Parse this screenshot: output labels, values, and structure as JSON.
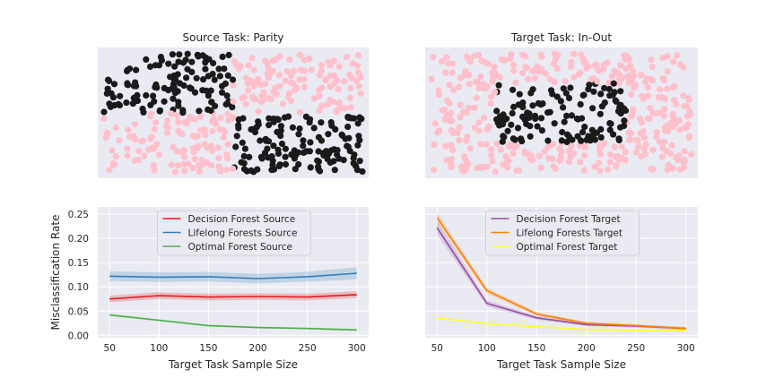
{
  "colors": {
    "axes_bg": "#eaeaf2",
    "grid": "#ffffff",
    "class_a": "#ffc0cb",
    "class_b": "#1a1a1a",
    "decision_forest_source": "#e41a1c",
    "lifelong_forests_source": "#377eb8",
    "optimal_forest_source": "#4daf4a",
    "decision_forest_target": "#984ea3",
    "lifelong_forests_target": "#ff7f00",
    "optimal_forest_target": "#ffff33"
  },
  "chart_data": [
    {
      "type": "scatter",
      "title": "Source Task: Parity",
      "task": "parity",
      "xlim": [
        -1,
        1
      ],
      "ylim": [
        -1,
        1
      ],
      "grid": false,
      "n_points": 500,
      "classes": [
        {
          "label": "0",
          "color": "#ffc0cb"
        },
        {
          "label": "1",
          "color": "#1a1a1a"
        }
      ]
    },
    {
      "type": "scatter",
      "title": "Target Task: In-Out",
      "task": "in-out",
      "xlim": [
        -1,
        1
      ],
      "ylim": [
        -1,
        1
      ],
      "grid": false,
      "n_points": 500,
      "classes": [
        {
          "label": "0",
          "color": "#ffc0cb"
        },
        {
          "label": "1",
          "color": "#1a1a1a"
        }
      ]
    },
    {
      "type": "line",
      "xlabel": "Target Task Sample Size",
      "ylabel": "Misclassification Rate",
      "x": [
        50,
        100,
        150,
        200,
        250,
        300
      ],
      "xticks": [
        50,
        100,
        150,
        200,
        250,
        300
      ],
      "yticks": [
        "0.00",
        "0.05",
        "0.10",
        "0.15",
        "0.20",
        "0.25"
      ],
      "xlim": [
        38,
        312
      ],
      "ylim": [
        -0.005,
        0.265
      ],
      "legend_location": "top-center",
      "series": [
        {
          "name": "Decision Forest Source",
          "color": "#e41a1c",
          "values": [
            0.075,
            0.082,
            0.079,
            0.08,
            0.079,
            0.084
          ],
          "band": [
            0.007,
            0.007,
            0.007,
            0.007,
            0.007,
            0.007
          ]
        },
        {
          "name": "Lifelong Forests Source",
          "color": "#377eb8",
          "values": [
            0.122,
            0.12,
            0.121,
            0.117,
            0.121,
            0.128
          ],
          "band": [
            0.01,
            0.01,
            0.01,
            0.01,
            0.01,
            0.013
          ]
        },
        {
          "name": "Optimal Forest Source",
          "color": "#4daf4a",
          "values": [
            0.042,
            0.031,
            0.02,
            0.016,
            0.014,
            0.011
          ],
          "band": [
            0.002,
            0.002,
            0.002,
            0.002,
            0.002,
            0.002
          ]
        }
      ]
    },
    {
      "type": "line",
      "xlabel": "Target Task Sample Size",
      "ylabel": "",
      "x": [
        50,
        100,
        150,
        200,
        250,
        300
      ],
      "xticks": [
        50,
        100,
        150,
        200,
        250,
        300
      ],
      "yticks": [],
      "xlim": [
        38,
        312
      ],
      "ylim": [
        -0.005,
        0.265
      ],
      "legend_location": "top-center",
      "series": [
        {
          "name": "Decision Forest Target",
          "color": "#984ea3",
          "values": [
            0.222,
            0.066,
            0.036,
            0.022,
            0.019,
            0.014
          ],
          "band": [
            0.014,
            0.006,
            0.004,
            0.003,
            0.003,
            0.003
          ]
        },
        {
          "name": "Lifelong Forests Target",
          "color": "#ff7f00",
          "values": [
            0.243,
            0.092,
            0.044,
            0.025,
            0.02,
            0.014
          ],
          "band": [
            0.01,
            0.006,
            0.004,
            0.003,
            0.003,
            0.003
          ]
        },
        {
          "name": "Optimal Forest Target",
          "color": "#ffff33",
          "values": [
            0.036,
            0.024,
            0.018,
            0.012,
            0.01,
            0.01
          ],
          "band": [
            0.002,
            0.002,
            0.002,
            0.002,
            0.002,
            0.002
          ]
        }
      ]
    }
  ]
}
